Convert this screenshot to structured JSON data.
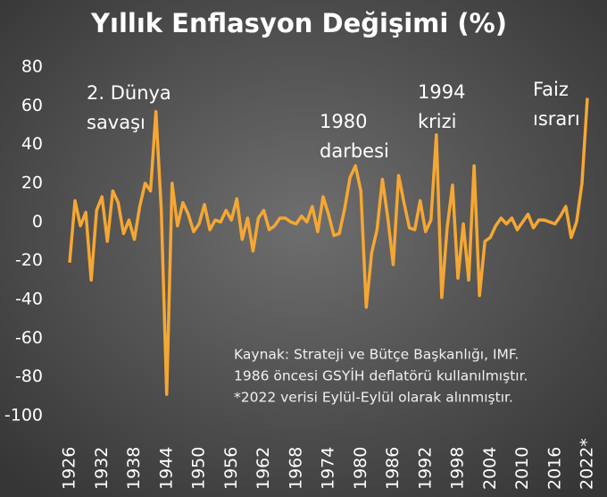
{
  "chart_data": {
    "type": "line",
    "title": "Yıllık Enflasyon Değişimi (%)",
    "categories": [
      "1926",
      null,
      null,
      null,
      null,
      null,
      "1932",
      null,
      null,
      null,
      null,
      null,
      "1938",
      null,
      null,
      null,
      null,
      null,
      "1944",
      null,
      null,
      null,
      null,
      null,
      "1950",
      null,
      null,
      null,
      null,
      null,
      "1956",
      null,
      null,
      null,
      null,
      null,
      "1962",
      null,
      null,
      null,
      null,
      null,
      "1968",
      null,
      null,
      null,
      null,
      null,
      "1974",
      null,
      null,
      null,
      null,
      null,
      "1980",
      null,
      null,
      null,
      null,
      null,
      "1986",
      null,
      null,
      null,
      null,
      null,
      "1992",
      null,
      null,
      null,
      null,
      null,
      "1998",
      null,
      null,
      null,
      null,
      null,
      "2004",
      null,
      null,
      null,
      null,
      null,
      "2010",
      null,
      null,
      null,
      null,
      null,
      "2016",
      null,
      null,
      null,
      null,
      null,
      "2022*"
    ],
    "series": [
      {
        "name": "Yıllık Enflasyon Değişimi",
        "color": "#f5a733",
        "values": [
          -21,
          11,
          -2,
          5,
          -30,
          6,
          13,
          -10,
          16,
          10,
          -6,
          1,
          -9,
          8,
          20,
          16,
          57,
          6,
          -89,
          20,
          -2,
          10,
          4,
          -5,
          -1,
          9,
          -4,
          1,
          0,
          6,
          1,
          12,
          -9,
          2,
          -15,
          2,
          6,
          -4,
          -2,
          2,
          2,
          0,
          -1,
          3,
          0,
          8,
          -5,
          13,
          4,
          -7,
          -6,
          7,
          23,
          29,
          16,
          -44,
          -16,
          -4,
          22,
          2,
          -22,
          24,
          10,
          -3,
          -4,
          11,
          -5,
          1,
          45,
          -39,
          -3,
          19,
          -29,
          -1,
          -30,
          29,
          -38,
          -10,
          -8,
          -2,
          2,
          -1,
          2,
          -4,
          0,
          4,
          -3,
          1,
          1,
          0,
          -1,
          3,
          8,
          -8,
          0,
          20,
          64
        ]
      }
    ],
    "ylim": [
      -100,
      80
    ],
    "yticks": [
      -100,
      -80,
      -60,
      -40,
      -20,
      0,
      20,
      40,
      60,
      80
    ],
    "annotations": [
      [
        "2. Dünya",
        "savaşı"
      ],
      [
        "1980",
        "darbesi"
      ],
      [
        "1994",
        "krizi"
      ],
      [
        "Faiz",
        "ısrarı"
      ]
    ],
    "note": [
      "Kaynak: Strateji ve Bütçe Başkanlığı, IMF.",
      "1986 öncesi GSYİH deflatörü kullanılmıştır.",
      "*2022 verisi Eylül-Eylül olarak alınmıştır."
    ]
  }
}
